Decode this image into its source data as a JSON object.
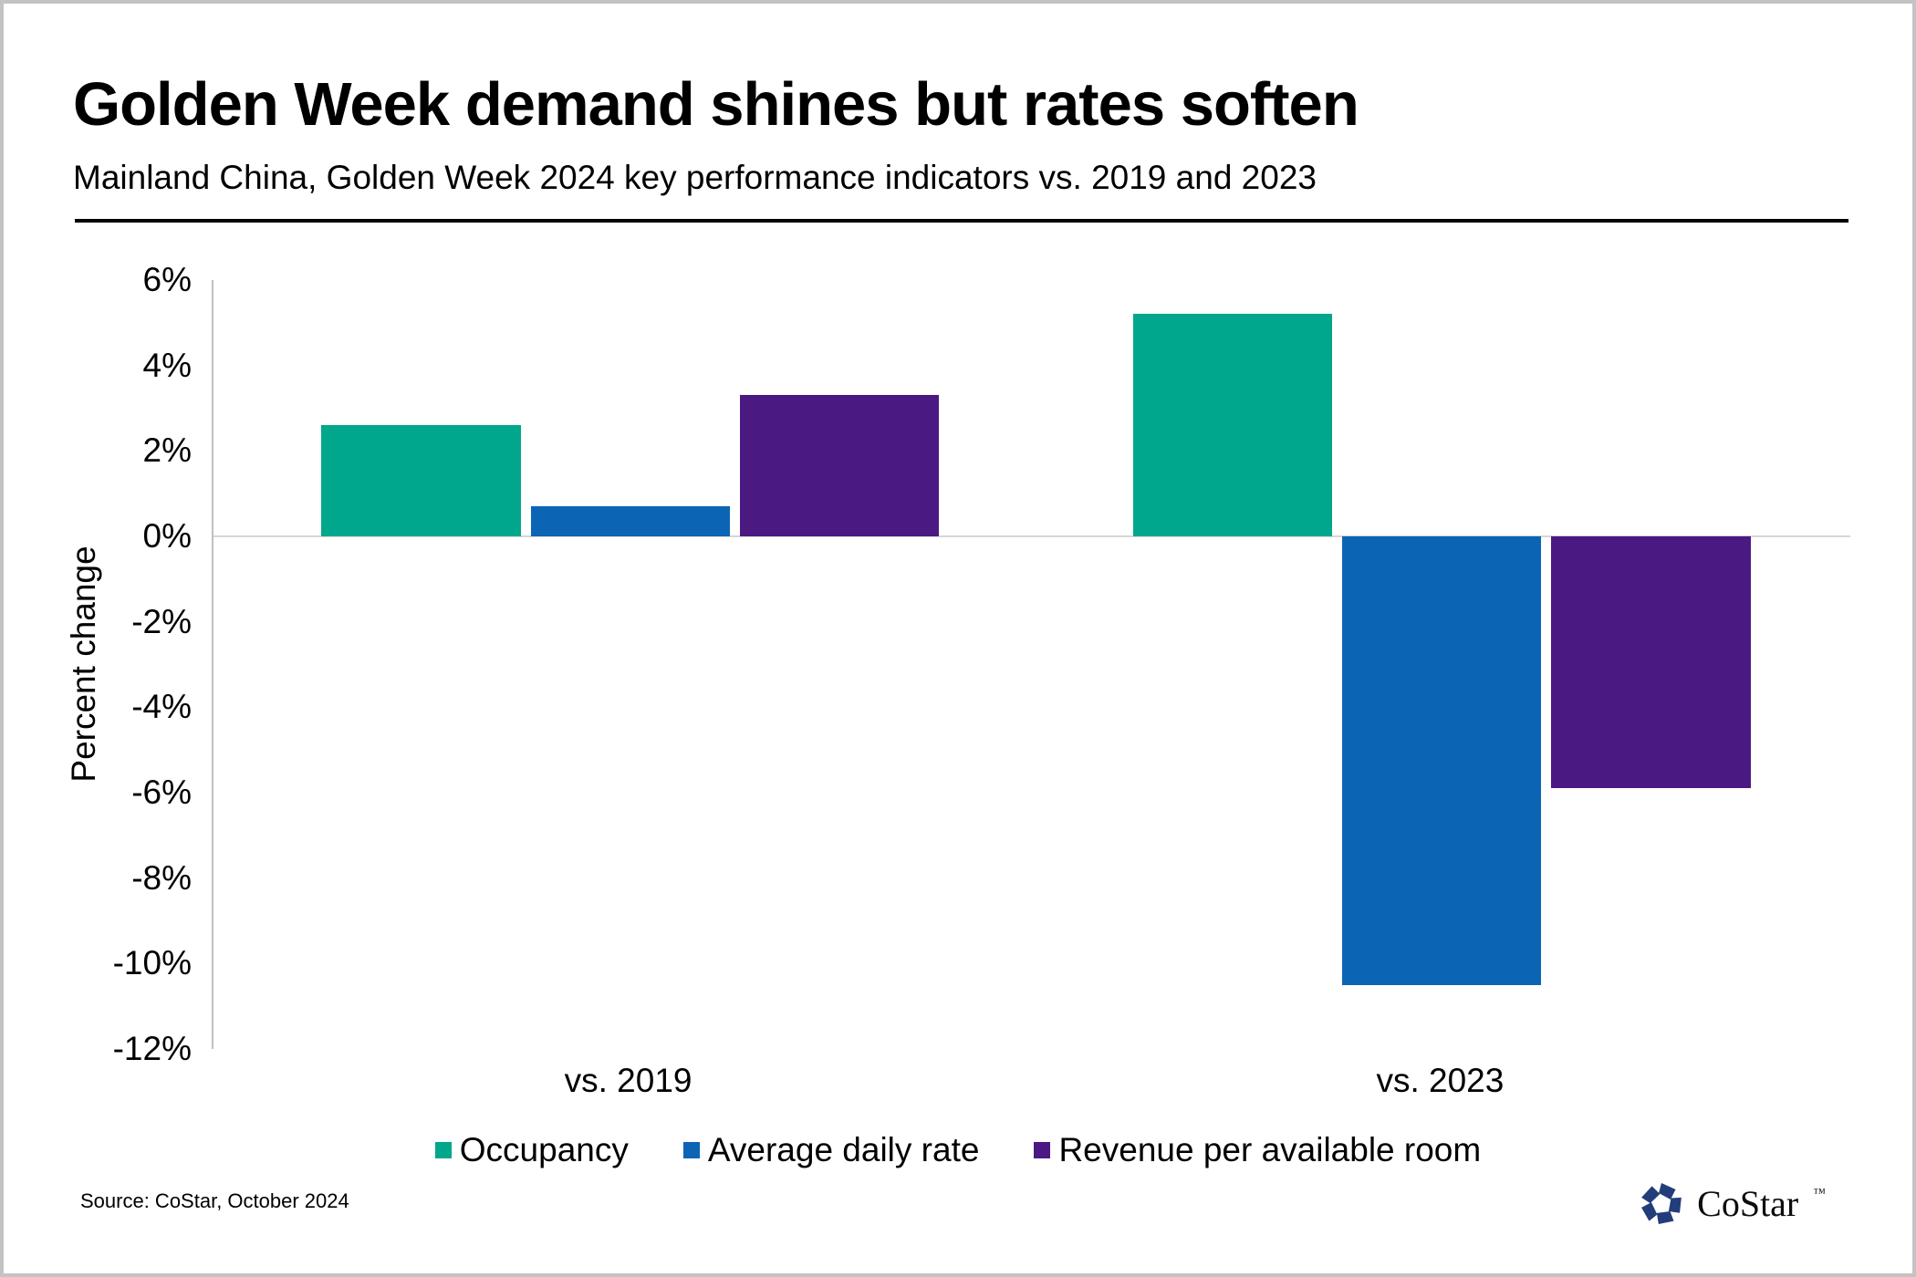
{
  "header": {
    "title": "Golden Week demand shines but rates soften",
    "subtitle": "Mainland China, Golden Week 2024 key performance indicators vs. 2019 and 2023"
  },
  "chart_data": {
    "type": "bar",
    "title": "Golden Week demand shines but rates soften",
    "subtitle": "Mainland China, Golden Week 2024 key performance indicators vs. 2019 and 2023",
    "categories": [
      "vs. 2019",
      "vs. 2023"
    ],
    "series": [
      {
        "name": "Occupancy",
        "color": "#00a78c",
        "values": [
          2.6,
          5.2
        ]
      },
      {
        "name": "Average daily rate",
        "color": "#0c64b5",
        "values": [
          0.7,
          -10.5
        ]
      },
      {
        "name": "Revenue per available room",
        "color": "#4a1a82",
        "values": [
          3.3,
          -5.9
        ]
      }
    ],
    "xlabel": "",
    "ylabel": "Percent change",
    "ylim": [
      -12,
      6
    ],
    "yticks": [
      {
        "value": 6,
        "label": "6%"
      },
      {
        "value": 4,
        "label": "4%"
      },
      {
        "value": 2,
        "label": "2%"
      },
      {
        "value": 0,
        "label": "0%"
      },
      {
        "value": -2,
        "label": "-2%"
      },
      {
        "value": -4,
        "label": "-4%"
      },
      {
        "value": -6,
        "label": "-6%"
      },
      {
        "value": -8,
        "label": "-8%"
      },
      {
        "value": -10,
        "label": "-10%"
      },
      {
        "value": -12,
        "label": "-12%"
      }
    ],
    "grid": "zero-baseline-only",
    "legend_position": "bottom",
    "layout": {
      "group_left_frac": [
        0.066,
        0.562
      ],
      "group_width_frac": 0.377
    }
  },
  "footer": {
    "source": "Source: CoStar, October 2024",
    "logo_text": "CoStar",
    "logo_tm": "™"
  },
  "colors": {
    "accent_teal": "#00a78c",
    "accent_blue": "#0c64b5",
    "accent_purple": "#4a1a82",
    "logo_navy": "#233d7a",
    "axis_line": "#c0c0c0",
    "zero_line": "#d6d6d6",
    "divider": "#000000",
    "frame_border": "#c3c3c3"
  }
}
